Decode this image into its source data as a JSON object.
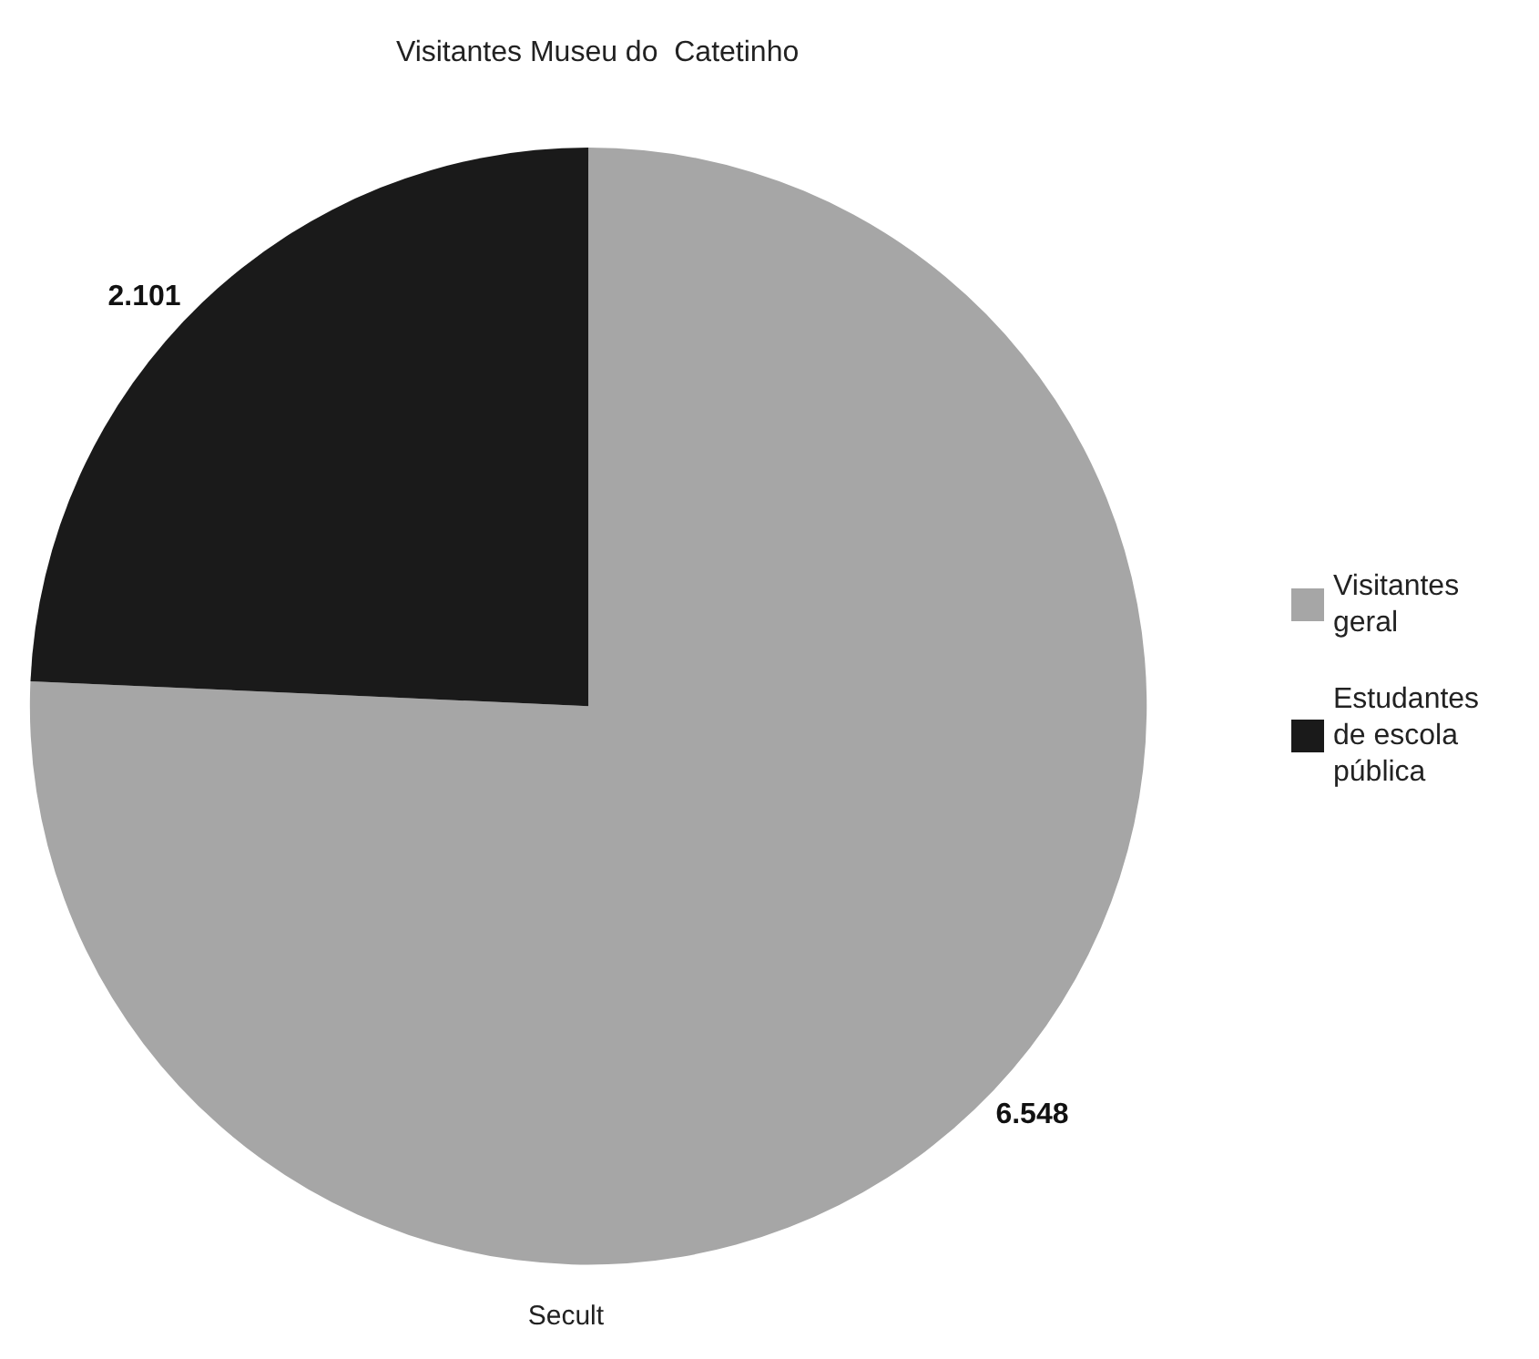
{
  "chart_data": {
    "type": "pie",
    "title": "Visitantes Museu do  Catetinho",
    "categories": [
      "Visitantes geral",
      "Estudantes de escola pública"
    ],
    "values": [
      6548,
      2101
    ],
    "value_labels": [
      "6.548",
      "2.101"
    ],
    "colors": [
      "#a6a6a6",
      "#1a1a1a"
    ],
    "legend": "right",
    "annotations": [
      "Secult"
    ]
  }
}
